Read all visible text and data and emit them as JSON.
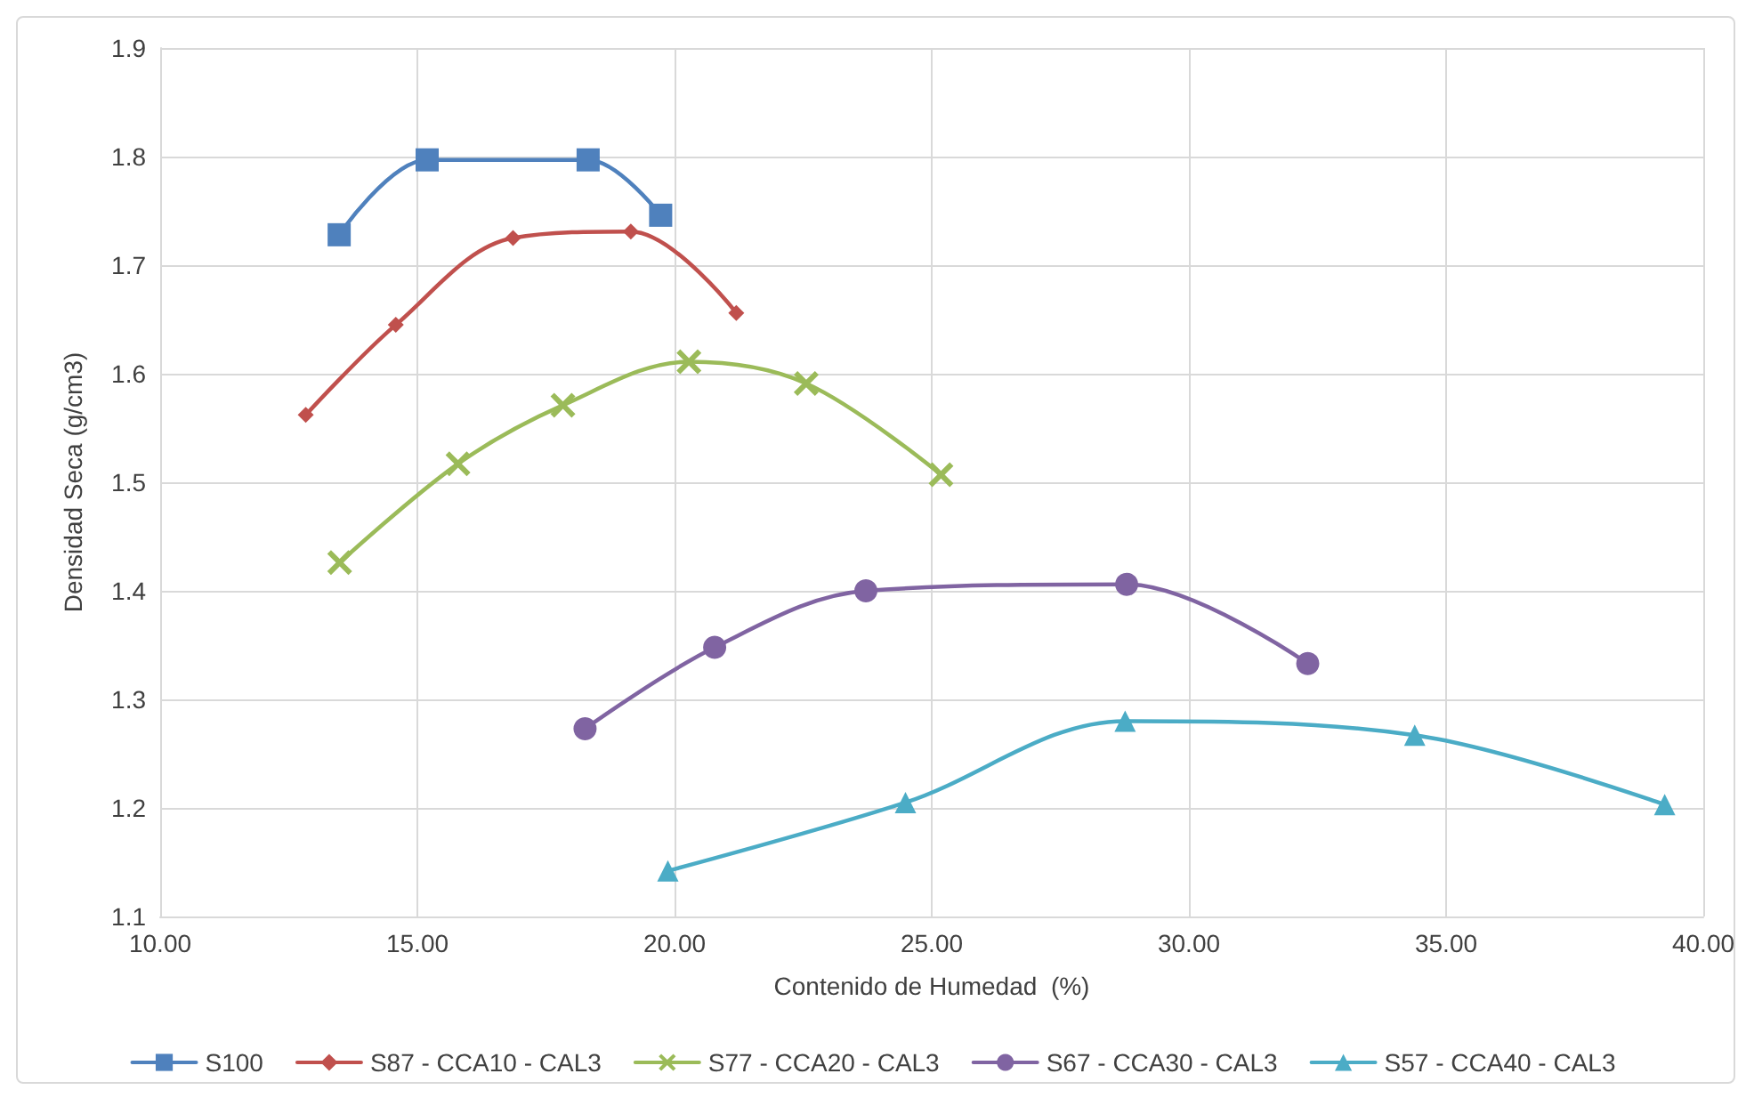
{
  "chart_data": {
    "type": "line",
    "xlabel": "Contenido de Humedad  (%)",
    "ylabel": "Densidad Seca (g/cm3)",
    "xlim": [
      10,
      40
    ],
    "xticks": [
      {
        "value": 10,
        "label": "10.00"
      },
      {
        "value": 15,
        "label": "15.00"
      },
      {
        "value": 20,
        "label": "20.00"
      },
      {
        "value": 25,
        "label": "25.00"
      },
      {
        "value": 30,
        "label": "30.00"
      },
      {
        "value": 35,
        "label": "35.00"
      },
      {
        "value": 40,
        "label": "40.00"
      }
    ],
    "ylim": [
      1.1,
      1.9
    ],
    "yticks": [
      1.1,
      1.2,
      1.3,
      1.4,
      1.5,
      1.6,
      1.7,
      1.8,
      1.9
    ],
    "grid": true,
    "legend": "bottom",
    "line_style": "solid",
    "series": [
      {
        "name": "S100",
        "color": "#4f81bd",
        "marker": "square",
        "x": [
          13.48,
          15.19,
          18.32,
          19.73
        ],
        "values": [
          1.728,
          1.797,
          1.797,
          1.746
        ]
      },
      {
        "name": "S87 - CCA10 - CAL3",
        "color": "#c0504d",
        "marker": "diamond",
        "x": [
          12.83,
          14.58,
          16.86,
          19.15,
          21.2
        ],
        "values": [
          1.562,
          1.645,
          1.725,
          1.731,
          1.656
        ]
      },
      {
        "name": "S77 - CCA20 - CAL3",
        "color": "#9bbb59",
        "marker": "cross",
        "x": [
          13.49,
          15.79,
          17.83,
          20.28,
          22.56,
          25.18
        ],
        "values": [
          1.426,
          1.517,
          1.571,
          1.611,
          1.591,
          1.507
        ]
      },
      {
        "name": "S67 - CCA30 - CAL3",
        "color": "#8064a2",
        "marker": "circle",
        "x": [
          18.26,
          20.78,
          23.72,
          28.79,
          32.31
        ],
        "values": [
          1.273,
          1.348,
          1.4,
          1.406,
          1.333
        ]
      },
      {
        "name": "S57 - CCA40 - CAL3",
        "color": "#4bacc6",
        "marker": "triangle",
        "x": [
          19.87,
          24.49,
          28.76,
          34.39,
          39.25
        ],
        "values": [
          1.142,
          1.205,
          1.28,
          1.267,
          1.203
        ]
      }
    ]
  }
}
